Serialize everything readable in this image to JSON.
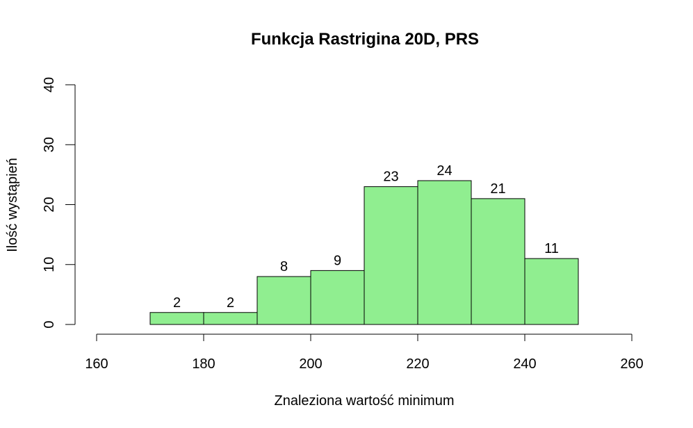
{
  "chart_data": {
    "type": "bar",
    "title": "Funkcja Rastrigina 20D, PRS",
    "xlabel": "Znaleziona wartość minimum",
    "ylabel": "Ilość wystąpień",
    "bins": [
      {
        "from": 170,
        "to": 180,
        "count": 2
      },
      {
        "from": 180,
        "to": 190,
        "count": 2
      },
      {
        "from": 190,
        "to": 200,
        "count": 8
      },
      {
        "from": 200,
        "to": 210,
        "count": 9
      },
      {
        "from": 210,
        "to": 220,
        "count": 23
      },
      {
        "from": 220,
        "to": 230,
        "count": 24
      },
      {
        "from": 230,
        "to": 240,
        "count": 21
      },
      {
        "from": 240,
        "to": 250,
        "count": 11
      }
    ],
    "xlim": [
      160,
      260
    ],
    "ylim": [
      0,
      40
    ],
    "xticks": [
      160,
      180,
      200,
      220,
      240,
      260
    ],
    "yticks": [
      0,
      10,
      20,
      30,
      40
    ],
    "bar_color": "#90ee90",
    "show_counts": true,
    "grid": false
  }
}
